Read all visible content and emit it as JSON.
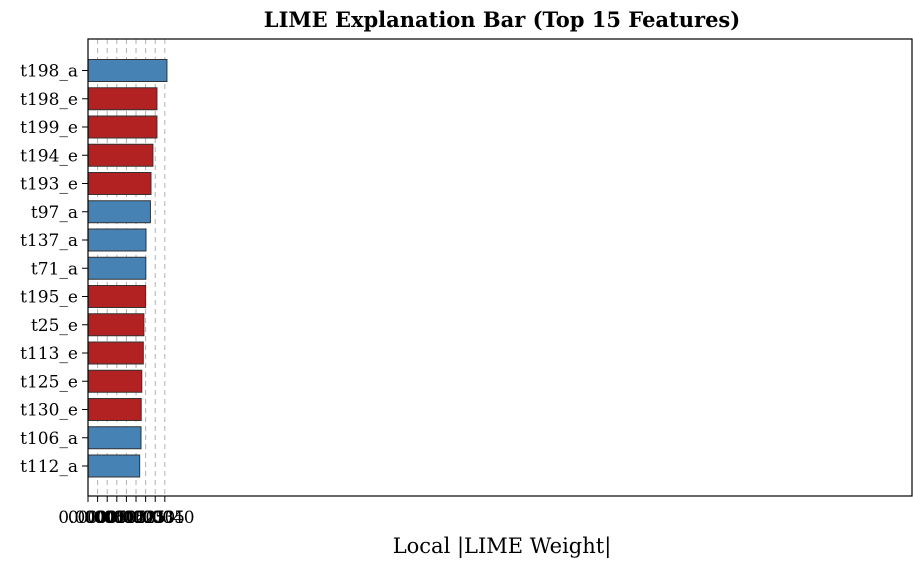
{
  "chart_data": {
    "type": "bar",
    "orientation": "horizontal",
    "title": "LIME Explanation Bar (Top 15 Features)",
    "xlabel": "Local |LIME Weight|",
    "ylabel": "",
    "xlim": [
      0.0,
      0.0429
    ],
    "x_ticks": [
      "0.0000",
      "0.0005",
      "0.0010",
      "0.0015",
      "0.0020",
      "0.0025",
      "0.0030",
      "0.0035",
      "0.0040"
    ],
    "grid": "x-dashed",
    "colors": {
      "a": "#4682b4",
      "e": "#b22222",
      "edge": "#333333",
      "grid": "#b0b0b0"
    },
    "categories": [
      "t198_a",
      "t198_e",
      "t199_e",
      "t194_e",
      "t193_e",
      "t97_a",
      "t137_a",
      "t71_a",
      "t195_e",
      "t25_e",
      "t113_e",
      "t125_e",
      "t130_e",
      "t106_a",
      "t112_a"
    ],
    "values": [
      0.00411,
      0.00359,
      0.00359,
      0.00338,
      0.00328,
      0.00325,
      0.00302,
      0.00301,
      0.003,
      0.00291,
      0.00288,
      0.0028,
      0.00277,
      0.00276,
      0.00269
    ],
    "groups": [
      "a",
      "e",
      "e",
      "e",
      "e",
      "a",
      "a",
      "a",
      "e",
      "e",
      "e",
      "e",
      "e",
      "a",
      "a"
    ]
  }
}
